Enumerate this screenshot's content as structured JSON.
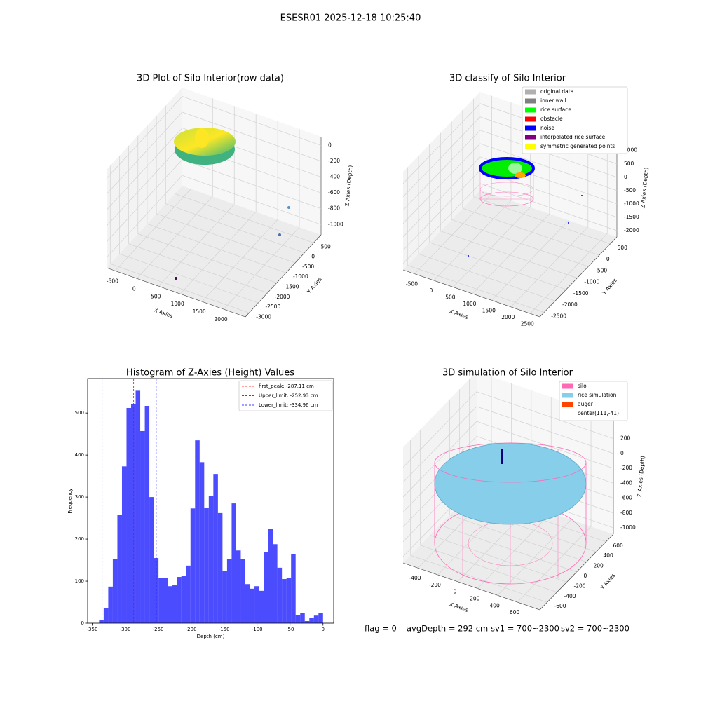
{
  "title": "ESESR01 2025-12-18 10:25:40",
  "chart_data": [
    {
      "type": "scatter3d",
      "title": "3D Plot of Silo Interior(row data)",
      "xlabel": "X Axies",
      "ylabel": "Y Axies",
      "zlabel": "Z Axies (Depth)",
      "xlim": [
        -700,
        2500
      ],
      "ylim": [
        -3200,
        900
      ],
      "zlim": [
        -1130,
        110
      ],
      "xticks": [
        -500,
        0,
        500,
        1000,
        1500,
        2000
      ],
      "yticks": [
        500,
        0,
        -500,
        -1000,
        -1500,
        -2000,
        -2500,
        -3000
      ],
      "zticks": [
        0,
        -200,
        -400,
        -600,
        -800,
        -1000
      ]
    },
    {
      "type": "scatter3d",
      "title": "3D classify of Silo Interior",
      "xlabel": "X Axies",
      "ylabel": "Y Axies",
      "zlabel": "Z Axies (Depth)",
      "xlim": [
        -800,
        2750
      ],
      "ylim": [
        -2700,
        800
      ],
      "zlim": [
        -2240,
        1440
      ],
      "xticks": [
        -500,
        0,
        500,
        1000,
        1500,
        2000,
        2500
      ],
      "yticks": [
        500,
        0,
        -500,
        -1000,
        -1500,
        -2000,
        -2500
      ],
      "zticks": [
        1000,
        500,
        0,
        -500,
        -1000,
        -1500,
        -2000
      ],
      "legend": [
        {
          "label": "original data",
          "color": "#b0b0b0"
        },
        {
          "label": "inner wall",
          "color": "#808080"
        },
        {
          "label": "rice surface",
          "color": "#00ff00"
        },
        {
          "label": "obstacle",
          "color": "#ff0000"
        },
        {
          "label": "noise",
          "color": "#0000ff"
        },
        {
          "label": "interpolated rice surface",
          "color": "#800080"
        },
        {
          "label": "symmetric generated points",
          "color": "#ffff00"
        }
      ]
    },
    {
      "type": "histogram",
      "title": "Histogram of Z-Axies (Height) Values",
      "xlabel": "Depth (cm)",
      "ylabel": "Frequency",
      "color": "#0000ff",
      "alpha": 0.7,
      "bins": [
        -339.5,
        -332.57,
        -325.64,
        -318.71,
        -311.78,
        -304.85,
        -297.92,
        -290.99,
        -284.06,
        -277.13,
        -270.2,
        -263.27,
        -256.34,
        -249.41,
        -242.48,
        -235.55,
        -228.62,
        -221.69,
        -214.76,
        -207.83,
        -200.9,
        -193.97,
        -187.04,
        -180.11,
        -173.18,
        -166.25,
        -159.32,
        -152.39,
        -145.46,
        -138.53,
        -131.6,
        -124.67,
        -117.74,
        -110.81,
        -103.88,
        -96.95,
        -90.02,
        -83.09,
        -76.16,
        -69.23,
        -62.3,
        -55.37,
        -48.44,
        -41.51,
        -34.58,
        -27.65,
        -20.72,
        -13.79,
        -6.86,
        0.07
      ],
      "values": [
        8,
        35,
        87,
        153,
        257,
        373,
        512,
        522,
        553,
        457,
        517,
        300,
        155,
        107,
        107,
        88,
        90,
        110,
        112,
        137,
        273,
        435,
        383,
        275,
        303,
        355,
        262,
        125,
        152,
        285,
        173,
        152,
        93,
        82,
        88,
        77,
        170,
        225,
        188,
        132,
        105,
        107,
        165,
        20,
        25,
        5,
        12,
        18,
        25
      ],
      "xlim": [
        -356.9,
        16.2
      ],
      "ylim": [
        0,
        582
      ],
      "xticks": [
        -350,
        -300,
        -250,
        -200,
        -150,
        -100,
        -50,
        0
      ],
      "yticks": [
        0,
        100,
        200,
        300,
        400,
        500
      ],
      "vlines": [
        {
          "label": "first_peak: -287.11 cm",
          "value": -287.11,
          "color": "#ff0000"
        },
        {
          "label": "Upper_limit: -252.93 cm",
          "value": -252.93,
          "color": "#0000ff"
        },
        {
          "label": "Lower_limit: -334.96 cm",
          "value": -334.96,
          "color": "#0000ff"
        }
      ]
    },
    {
      "type": "surface3d",
      "title": "3D simulation of Silo Interior",
      "xlabel": "X Axies",
      "ylabel": "Y Axies",
      "zlabel": "Z Axies (Depth)",
      "xlim": [
        -548,
        825
      ],
      "ylim": [
        -750,
        750
      ],
      "zlim": [
        -1085,
        470
      ],
      "xticks": [
        -400,
        -200,
        0,
        200,
        400,
        600
      ],
      "yticks": [
        600,
        400,
        200,
        0,
        -200,
        -400,
        -600
      ],
      "zticks": [
        200,
        0,
        -200,
        -400,
        -600,
        -800,
        -1000
      ],
      "legend": [
        {
          "label": "silo",
          "color": "#ff69b4"
        },
        {
          "label": "rice simulation",
          "color": "#87ceeb"
        },
        {
          "label": "auger",
          "color": "#ff4500"
        },
        {
          "label": "center(111,-41)"
        }
      ]
    }
  ],
  "footer": [
    "flag = 0",
    "avgDepth = 292 cm",
    "sv1 = 700~2300",
    "sv2 = 700~2300"
  ]
}
